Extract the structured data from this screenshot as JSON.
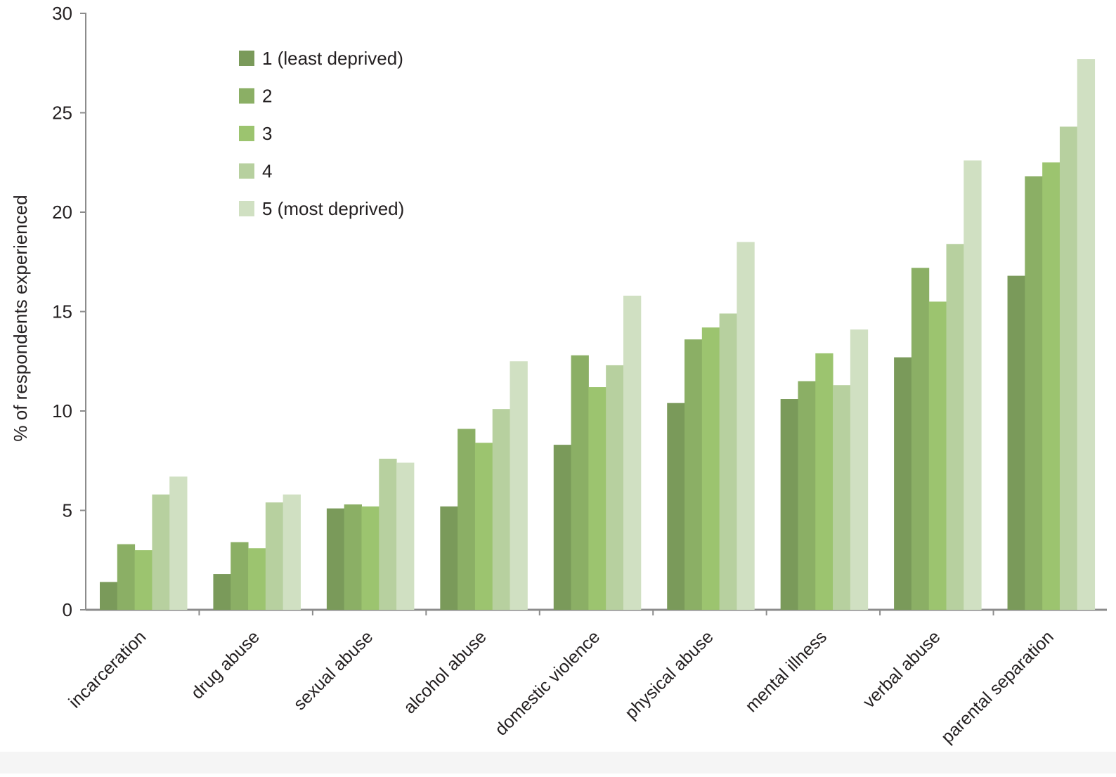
{
  "chart_data": {
    "type": "bar",
    "title": "",
    "xlabel": "",
    "ylabel": "% of respondents experienced",
    "ylim": [
      0,
      30
    ],
    "yticks": [
      0,
      5,
      10,
      15,
      20,
      25,
      30
    ],
    "grid": false,
    "legend_position": "top-left",
    "categories": [
      "incarceration",
      "drug abuse",
      "sexual abuse",
      "alcohol abuse",
      "domestic violence",
      "physical abuse",
      "mental illness",
      "verbal abuse",
      "parental separation"
    ],
    "series": [
      {
        "name": "1 (least deprived)",
        "color": "#7a9a5a",
        "values": [
          1.4,
          1.8,
          5.1,
          5.2,
          8.3,
          10.4,
          10.6,
          12.7,
          16.8
        ]
      },
      {
        "name": "2",
        "color": "#8baf65",
        "values": [
          3.3,
          3.4,
          5.3,
          9.1,
          12.8,
          13.6,
          11.5,
          17.2,
          21.8
        ]
      },
      {
        "name": "3",
        "color": "#9cc46f",
        "values": [
          3.0,
          3.1,
          5.2,
          8.4,
          11.2,
          14.2,
          12.9,
          15.5,
          22.5
        ]
      },
      {
        "name": "4",
        "color": "#b7d09f",
        "values": [
          5.8,
          5.4,
          7.6,
          10.1,
          12.3,
          14.9,
          11.3,
          18.4,
          24.3
        ]
      },
      {
        "name": "5 (most deprived)",
        "color": "#d0e0c2",
        "values": [
          6.7,
          5.8,
          7.4,
          12.5,
          15.8,
          18.5,
          14.1,
          22.6,
          27.7
        ]
      }
    ]
  }
}
